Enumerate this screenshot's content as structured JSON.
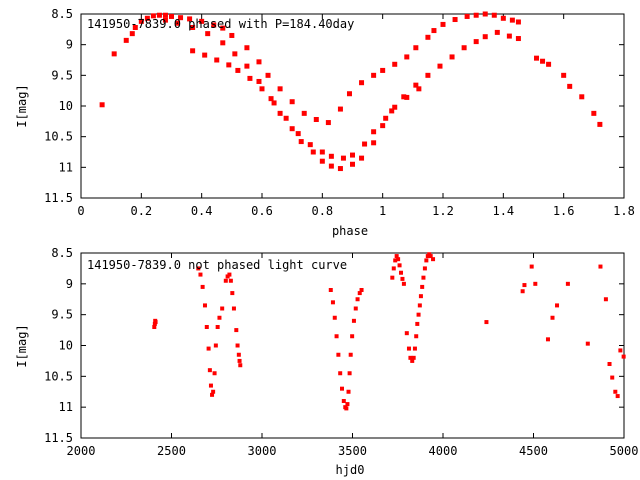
{
  "chart_data": [
    {
      "type": "scatter",
      "title": "141950-7839.0 phased with P=184.40day",
      "xlabel": "phase",
      "ylabel": "I[mag]",
      "xlim": [
        0,
        1.8
      ],
      "ylim": [
        8.5,
        11.5
      ],
      "y_inverted": true,
      "xticks": [
        "0",
        "0.2",
        "0.4",
        "0.6",
        "0.8",
        "1",
        "1.2",
        "1.4",
        "1.6",
        "1.8"
      ],
      "yticks": [
        "8.5",
        "9",
        "9.5",
        "10",
        "10.5",
        "11",
        "11.5"
      ],
      "marker": "filled-square",
      "color": "#ff0000",
      "grid": false,
      "series": [
        {
          "x": [
            0.07,
            0.11,
            0.15,
            0.17,
            0.18,
            0.2,
            0.22,
            0.24,
            0.26,
            0.28,
            0.3,
            0.33,
            0.36,
            0.4,
            0.44,
            0.47,
            0.5,
            0.55,
            0.59,
            0.62,
            0.66,
            0.7,
            0.74,
            0.78,
            0.82,
            0.86,
            0.89,
            0.93,
            0.97,
            1.0,
            1.04,
            1.08,
            1.11,
            1.15,
            1.17,
            1.2,
            1.24,
            1.28,
            1.31,
            1.34,
            1.37,
            1.4,
            1.43,
            1.45,
            1.51,
            1.53,
            1.55,
            1.6,
            1.62,
            1.66,
            1.7,
            1.72,
            0.28,
            0.32,
            0.37,
            0.42,
            0.47,
            0.51,
            0.55,
            0.59,
            0.63,
            0.66,
            0.7,
            0.73,
            0.77,
            0.8,
            0.83,
            0.86,
            0.9,
            0.93,
            0.97,
            1.0,
            1.03,
            1.07,
            1.11,
            1.15,
            1.19,
            1.23,
            1.27,
            1.31,
            1.34,
            1.38,
            1.42,
            1.45,
            0.37,
            0.41,
            0.45,
            0.49,
            0.52,
            0.56,
            0.6,
            0.64,
            0.68,
            0.72,
            0.76,
            0.8,
            0.83,
            0.87,
            0.9,
            0.94,
            0.97,
            1.01,
            1.04,
            1.08,
            1.12
          ],
          "y": [
            9.98,
            9.15,
            8.93,
            8.82,
            8.72,
            8.62,
            8.57,
            8.53,
            8.52,
            8.52,
            8.54,
            8.56,
            8.58,
            8.62,
            8.68,
            8.73,
            8.85,
            9.05,
            9.28,
            9.5,
            9.72,
            9.93,
            10.12,
            10.22,
            10.27,
            10.05,
            9.8,
            9.62,
            9.5,
            9.42,
            9.32,
            9.2,
            9.05,
            8.88,
            8.77,
            8.67,
            8.59,
            8.54,
            8.52,
            8.5,
            8.52,
            8.57,
            8.6,
            8.63,
            9.22,
            9.27,
            9.32,
            9.5,
            9.68,
            9.85,
            10.12,
            10.3,
            8.6,
            8.65,
            8.72,
            8.82,
            8.97,
            9.15,
            9.35,
            9.6,
            9.88,
            10.12,
            10.37,
            10.58,
            10.75,
            10.9,
            10.98,
            11.02,
            10.95,
            10.85,
            10.6,
            10.32,
            10.08,
            9.85,
            9.66,
            9.5,
            9.35,
            9.2,
            9.05,
            8.95,
            8.87,
            8.8,
            8.86,
            8.9,
            9.1,
            9.17,
            9.25,
            9.33,
            9.42,
            9.55,
            9.72,
            9.95,
            10.2,
            10.45,
            10.63,
            10.75,
            10.82,
            10.85,
            10.8,
            10.62,
            10.42,
            10.2,
            10.02,
            9.86,
            9.72
          ]
        }
      ]
    },
    {
      "type": "scatter",
      "title": "141950-7839.0 not phased light curve",
      "xlabel": "hjd0",
      "ylabel": "I[mag]",
      "xlim": [
        2000,
        5000
      ],
      "ylim": [
        8.5,
        11.5
      ],
      "y_inverted": true,
      "xticks": [
        "2000",
        "2500",
        "3000",
        "3500",
        "4000",
        "4500",
        "5000"
      ],
      "yticks": [
        "8.5",
        "9",
        "9.5",
        "10",
        "10.5",
        "11",
        "11.5"
      ],
      "marker": "filled-square",
      "color": "#ff0000",
      "grid": false,
      "series": [
        {
          "x": [
            2405,
            2408,
            2410,
            2412,
            2648,
            2660,
            2672,
            2685,
            2695,
            2705,
            2712,
            2718,
            2724,
            2730,
            2738,
            2745,
            2755,
            2765,
            2780,
            2800,
            2810,
            2820,
            2828,
            2836,
            2845,
            2858,
            2865,
            2872,
            2876,
            2880,
            3380,
            3392,
            3402,
            3412,
            3422,
            3432,
            3442,
            3452,
            3460,
            3466,
            3472,
            3478,
            3484,
            3490,
            3498,
            3508,
            3518,
            3528,
            3540,
            3550,
            3720,
            3728,
            3736,
            3744,
            3752,
            3760,
            3768,
            3776,
            3784,
            3800,
            3812,
            3820,
            3830,
            3838,
            3845,
            3852,
            3858,
            3865,
            3872,
            3878,
            3885,
            3892,
            3900,
            3908,
            3916,
            3924,
            3932,
            3945,
            4240,
            4440,
            4450,
            4490,
            4510,
            4580,
            4605,
            4630,
            4690,
            4800,
            4870,
            4900,
            4920,
            4935,
            4952,
            4965,
            4980,
            4998
          ],
          "y": [
            9.7,
            9.65,
            9.6,
            9.62,
            8.75,
            8.85,
            9.05,
            9.35,
            9.7,
            10.05,
            10.4,
            10.65,
            10.8,
            10.75,
            10.45,
            10.0,
            9.7,
            9.55,
            9.4,
            8.95,
            8.88,
            8.85,
            8.95,
            9.15,
            9.4,
            9.75,
            10.0,
            10.15,
            10.25,
            10.32,
            9.1,
            9.3,
            9.55,
            9.85,
            10.15,
            10.45,
            10.7,
            10.9,
            11.0,
            11.02,
            10.95,
            10.75,
            10.45,
            10.15,
            9.85,
            9.6,
            9.4,
            9.25,
            9.15,
            9.1,
            8.9,
            8.75,
            8.62,
            8.55,
            8.6,
            8.7,
            8.82,
            8.92,
            9.0,
            9.8,
            10.05,
            10.2,
            10.25,
            10.2,
            10.05,
            9.85,
            9.65,
            9.5,
            9.35,
            9.2,
            9.05,
            8.9,
            8.75,
            8.62,
            8.55,
            8.52,
            8.55,
            8.6,
            9.62,
            9.12,
            9.02,
            8.72,
            9.0,
            9.9,
            9.55,
            9.35,
            9.0,
            9.97,
            8.72,
            9.25,
            10.3,
            10.52,
            10.75,
            10.82,
            10.08,
            10.18
          ]
        }
      ]
    }
  ]
}
